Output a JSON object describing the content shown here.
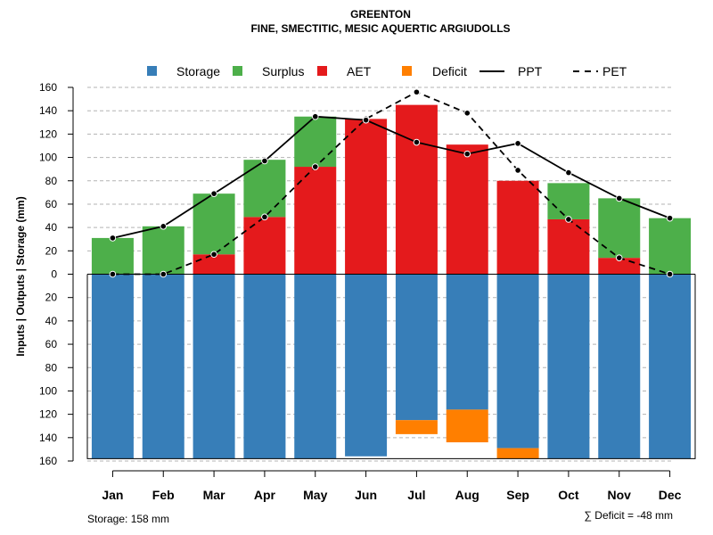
{
  "chart_data": {
    "type": "bar",
    "title": "GREENTON",
    "subtitle": "FINE, SMECTITIC, MESIC AQUERTIC ARGIUDOLLS",
    "ylabel": "Inputs | Outputs | Storage     (mm)",
    "ylim": [
      -160,
      160
    ],
    "yticks": [
      160,
      140,
      120,
      100,
      80,
      60,
      40,
      20,
      0,
      20,
      40,
      60,
      80,
      100,
      120,
      140,
      160
    ],
    "grid": true,
    "categories": [
      "Jan",
      "Feb",
      "Mar",
      "Apr",
      "May",
      "Jun",
      "Jul",
      "Aug",
      "Sep",
      "Oct",
      "Nov",
      "Dec"
    ],
    "legend": [
      {
        "name": "Storage",
        "kind": "box",
        "color": "#377eb8"
      },
      {
        "name": "Surplus",
        "kind": "box",
        "color": "#4daf4a"
      },
      {
        "name": "AET",
        "kind": "box",
        "color": "#e41a1c"
      },
      {
        "name": "Deficit",
        "kind": "box",
        "color": "#ff7f00"
      },
      {
        "name": "PPT",
        "kind": "solid",
        "color": "#000000"
      },
      {
        "name": "PET",
        "kind": "dashed",
        "color": "#000000"
      }
    ],
    "series": [
      {
        "name": "AET",
        "values": [
          0,
          0,
          17,
          49,
          92,
          133,
          145,
          111,
          80,
          47,
          14,
          0
        ]
      },
      {
        "name": "Surplus",
        "values": [
          31,
          41,
          52,
          49,
          43,
          0,
          0,
          0,
          0,
          31,
          51,
          48
        ]
      },
      {
        "name": "Storage",
        "values": [
          -158,
          -158,
          -158,
          -158,
          -158,
          -156,
          -125,
          -116,
          -149,
          -158,
          -158,
          -158
        ]
      },
      {
        "name": "Deficit",
        "values": [
          0,
          0,
          0,
          0,
          0,
          0,
          -12,
          -28,
          -9,
          0,
          0,
          0
        ]
      },
      {
        "name": "PPT",
        "values": [
          31,
          41,
          69,
          97,
          135,
          132,
          113,
          103,
          112,
          87,
          65,
          48
        ]
      },
      {
        "name": "PET",
        "values": [
          0,
          0,
          17,
          49,
          92,
          133,
          156,
          138,
          89,
          47,
          14,
          0
        ]
      }
    ],
    "storage_note": "Storage: 158 mm",
    "deficit_note": "∑ Deficit = -48 mm"
  }
}
